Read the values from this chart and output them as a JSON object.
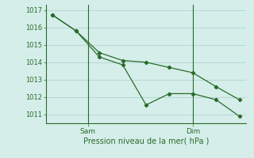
{
  "line1_x": [
    0,
    1,
    2,
    3,
    4,
    5,
    6,
    7,
    8
  ],
  "line1_y": [
    1016.7,
    1015.8,
    1014.3,
    1013.85,
    1011.55,
    1012.2,
    1012.2,
    1011.85,
    1010.9
  ],
  "line2_x": [
    0,
    1,
    2,
    3,
    4,
    5,
    6,
    7,
    8
  ],
  "line2_y": [
    1016.7,
    1015.8,
    1014.55,
    1014.1,
    1014.0,
    1013.7,
    1013.4,
    1012.6,
    1011.85
  ],
  "line_color": "#2a6b2a",
  "bg_color": "#d5eeea",
  "grid_color": "#b5d8d4",
  "xlabel": "Pression niveau de la mer( hPa )",
  "ylim": [
    1010.5,
    1017.3
  ],
  "yticks": [
    1011,
    1012,
    1013,
    1014,
    1015,
    1016,
    1017
  ],
  "xtick_positions": [
    1.5,
    6.0
  ],
  "xtick_labels": [
    "Sam",
    "Dim"
  ],
  "vline_positions": [
    1.5,
    6.0
  ],
  "xlabel_fontsize": 7,
  "ytick_fontsize": 6,
  "xtick_fontsize": 6.5
}
